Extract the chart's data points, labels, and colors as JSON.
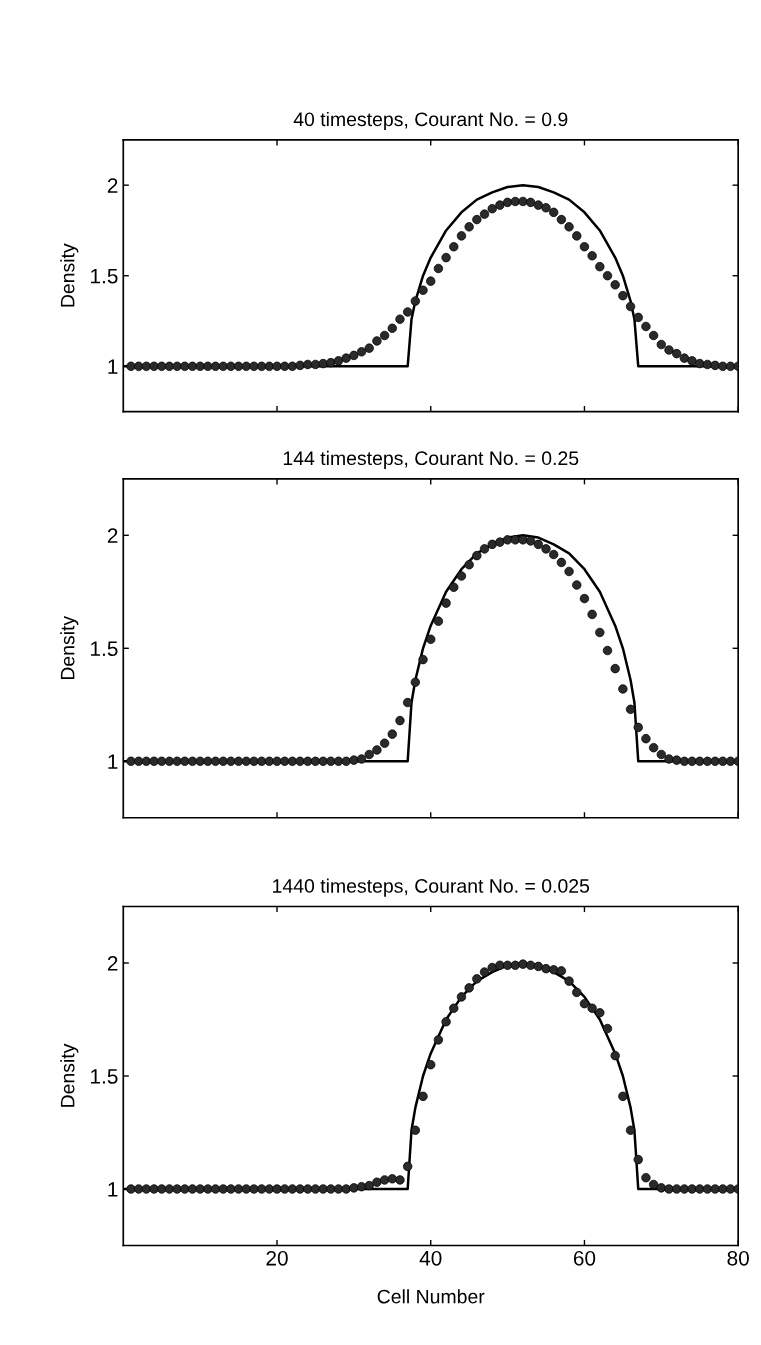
{
  "chart_data": [
    {
      "type": "line",
      "title": "40 timesteps, Courant No. = 0.9",
      "ylabel": "Density",
      "xlim": [
        0,
        80
      ],
      "xticks": [
        20,
        40,
        60,
        80
      ],
      "ylim": [
        0.75,
        2.25
      ],
      "yticks": [
        1,
        1.5,
        2
      ],
      "tick_labels": "y",
      "grid": false,
      "series": [
        {
          "color": "#000000",
          "marker": "none",
          "line_style": "solid",
          "x": [
            0,
            37,
            37.5,
            38,
            39,
            40,
            42,
            44,
            46,
            48,
            50,
            52,
            54,
            56,
            58,
            60,
            62,
            64,
            65,
            66,
            66.5,
            67,
            80
          ],
          "values": [
            1,
            1,
            1.26,
            1.36,
            1.5,
            1.6,
            1.75,
            1.85,
            1.92,
            1.96,
            1.99,
            2,
            1.99,
            1.96,
            1.92,
            1.85,
            1.75,
            1.6,
            1.5,
            1.36,
            1.26,
            1,
            1
          ]
        },
        {
          "type": "scatter",
          "color": "#2a2a2a",
          "marker": "circle",
          "x": [
            1,
            2,
            3,
            4,
            5,
            6,
            7,
            8,
            9,
            10,
            11,
            12,
            13,
            14,
            15,
            16,
            17,
            18,
            19,
            20,
            21,
            22,
            23,
            24,
            25,
            26,
            27,
            28,
            29,
            30,
            31,
            32,
            33,
            34,
            35,
            36,
            37,
            38,
            39,
            40,
            41,
            42,
            43,
            44,
            45,
            46,
            47,
            48,
            49,
            50,
            51,
            52,
            53,
            54,
            55,
            56,
            57,
            58,
            59,
            60,
            61,
            62,
            63,
            64,
            65,
            66,
            67,
            68,
            69,
            70,
            71,
            72,
            73,
            74,
            75,
            76,
            77,
            78,
            79,
            80
          ],
          "values": [
            1,
            1,
            1,
            1,
            1,
            1,
            1,
            1,
            1,
            1,
            1,
            1,
            1,
            1,
            1,
            1,
            1,
            1,
            1,
            1,
            1,
            1,
            1.005,
            1.01,
            1.01,
            1.015,
            1.02,
            1.03,
            1.045,
            1.06,
            1.08,
            1.1,
            1.14,
            1.17,
            1.21,
            1.26,
            1.3,
            1.36,
            1.42,
            1.47,
            1.54,
            1.6,
            1.66,
            1.72,
            1.77,
            1.81,
            1.84,
            1.87,
            1.89,
            1.905,
            1.91,
            1.91,
            1.905,
            1.89,
            1.875,
            1.85,
            1.81,
            1.77,
            1.72,
            1.66,
            1.61,
            1.55,
            1.5,
            1.45,
            1.39,
            1.33,
            1.27,
            1.22,
            1.17,
            1.12,
            1.09,
            1.07,
            1.045,
            1.03,
            1.015,
            1.01,
            1.005,
            1,
            1,
            1
          ]
        }
      ]
    },
    {
      "type": "line",
      "title": "144 timesteps, Courant No. = 0.25",
      "ylabel": "Density",
      "xlim": [
        0,
        80
      ],
      "xticks": [
        20,
        40,
        60,
        80
      ],
      "ylim": [
        0.75,
        2.25
      ],
      "yticks": [
        1,
        1.5,
        2
      ],
      "tick_labels": "y",
      "grid": false,
      "series": [
        {
          "color": "#000000",
          "marker": "none",
          "line_style": "solid",
          "x": [
            0,
            37,
            37.5,
            38,
            39,
            40,
            42,
            44,
            46,
            48,
            50,
            52,
            54,
            56,
            58,
            60,
            62,
            64,
            65,
            66,
            66.5,
            67,
            80
          ],
          "values": [
            1,
            1,
            1.26,
            1.36,
            1.5,
            1.6,
            1.75,
            1.85,
            1.92,
            1.96,
            1.99,
            2,
            1.99,
            1.96,
            1.92,
            1.85,
            1.75,
            1.6,
            1.5,
            1.36,
            1.26,
            1,
            1
          ]
        },
        {
          "type": "scatter",
          "color": "#2a2a2a",
          "marker": "circle",
          "x": [
            1,
            2,
            3,
            4,
            5,
            6,
            7,
            8,
            9,
            10,
            11,
            12,
            13,
            14,
            15,
            16,
            17,
            18,
            19,
            20,
            21,
            22,
            23,
            24,
            25,
            26,
            27,
            28,
            29,
            30,
            31,
            32,
            33,
            34,
            35,
            36,
            37,
            38,
            39,
            40,
            41,
            42,
            43,
            44,
            45,
            46,
            47,
            48,
            49,
            50,
            51,
            52,
            53,
            54,
            55,
            56,
            57,
            58,
            59,
            60,
            61,
            62,
            63,
            64,
            65,
            66,
            67,
            68,
            69,
            70,
            71,
            72,
            73,
            74,
            75,
            76,
            77,
            78,
            79,
            80
          ],
          "values": [
            1,
            1,
            1,
            1,
            1,
            1,
            1,
            1,
            1,
            1,
            1,
            1,
            1,
            1,
            1,
            1,
            1,
            1,
            1,
            1,
            1,
            1,
            1,
            1,
            1,
            1,
            1,
            1,
            1,
            1.005,
            1.01,
            1.03,
            1.05,
            1.08,
            1.12,
            1.18,
            1.26,
            1.35,
            1.45,
            1.54,
            1.62,
            1.7,
            1.77,
            1.82,
            1.87,
            1.91,
            1.94,
            1.96,
            1.97,
            1.98,
            1.98,
            1.98,
            1.975,
            1.96,
            1.94,
            1.915,
            1.88,
            1.84,
            1.78,
            1.72,
            1.65,
            1.57,
            1.49,
            1.41,
            1.32,
            1.23,
            1.15,
            1.1,
            1.06,
            1.03,
            1.01,
            1.005,
            1,
            1,
            1,
            1,
            1,
            1,
            1,
            1
          ]
        }
      ]
    },
    {
      "type": "line",
      "title": "1440 timesteps, Courant No. = 0.025",
      "xlabel": "Cell Number",
      "ylabel": "Density",
      "xlim": [
        0,
        80
      ],
      "xticks": [
        20,
        40,
        60,
        80
      ],
      "ylim": [
        0.75,
        2.25
      ],
      "yticks": [
        1,
        1.5,
        2
      ],
      "grid": false,
      "series": [
        {
          "color": "#000000",
          "marker": "none",
          "line_style": "solid",
          "x": [
            0,
            37,
            37.5,
            38,
            39,
            40,
            42,
            44,
            46,
            48,
            50,
            52,
            54,
            56,
            58,
            60,
            62,
            64,
            65,
            66,
            66.5,
            67,
            80
          ],
          "values": [
            1,
            1,
            1.26,
            1.36,
            1.5,
            1.6,
            1.75,
            1.85,
            1.92,
            1.96,
            1.99,
            2,
            1.99,
            1.96,
            1.92,
            1.85,
            1.75,
            1.6,
            1.5,
            1.36,
            1.26,
            1,
            1
          ]
        },
        {
          "type": "scatter",
          "color": "#2a2a2a",
          "marker": "circle",
          "x": [
            1,
            2,
            3,
            4,
            5,
            6,
            7,
            8,
            9,
            10,
            11,
            12,
            13,
            14,
            15,
            16,
            17,
            18,
            19,
            20,
            21,
            22,
            23,
            24,
            25,
            26,
            27,
            28,
            29,
            30,
            31,
            32,
            33,
            34,
            35,
            36,
            37,
            38,
            39,
            40,
            41,
            42,
            43,
            44,
            45,
            46,
            47,
            48,
            49,
            50,
            51,
            52,
            53,
            54,
            55,
            56,
            57,
            58,
            59,
            60,
            61,
            62,
            63,
            64,
            65,
            66,
            67,
            68,
            69,
            70,
            71,
            72,
            73,
            74,
            75,
            76,
            77,
            78,
            79,
            80
          ],
          "values": [
            1,
            1,
            1,
            1,
            1,
            1,
            1,
            1,
            1,
            1,
            1,
            1,
            1,
            1,
            1,
            1,
            1,
            1,
            1,
            1,
            1,
            1,
            1,
            1,
            1,
            1,
            1,
            1,
            1,
            1.005,
            1.01,
            1.015,
            1.03,
            1.04,
            1.045,
            1.04,
            1.1,
            1.26,
            1.41,
            1.55,
            1.66,
            1.74,
            1.8,
            1.85,
            1.89,
            1.93,
            1.96,
            1.98,
            1.99,
            1.99,
            1.99,
            1.995,
            1.99,
            1.985,
            1.975,
            1.97,
            1.965,
            1.92,
            1.87,
            1.82,
            1.8,
            1.78,
            1.71,
            1.59,
            1.41,
            1.26,
            1.13,
            1.05,
            1.02,
            1.005,
            1,
            1,
            1,
            1,
            1,
            1,
            1,
            1,
            1,
            1
          ]
        }
      ]
    }
  ]
}
